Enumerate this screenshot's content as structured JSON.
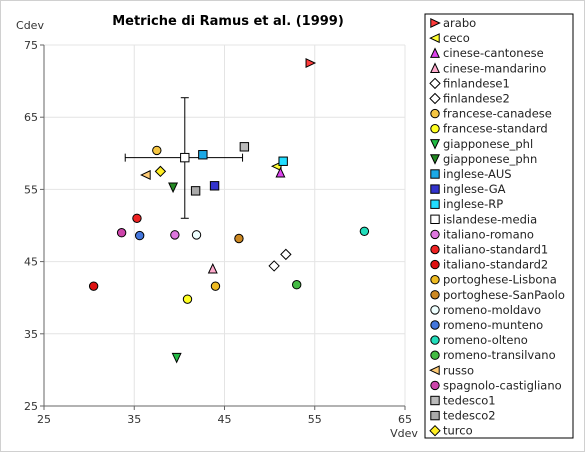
{
  "chart_data": {
    "type": "scatter",
    "title": "Metriche di Ramus et al. (1999)",
    "xlabel": "Vdev",
    "ylabel": "Cdev",
    "xlim": [
      25,
      65
    ],
    "ylim": [
      25,
      75
    ],
    "xticks": [
      "25",
      "35",
      "45",
      "55",
      "65"
    ],
    "yticks": [
      "25",
      "35",
      "45",
      "55",
      "65",
      "75"
    ],
    "grid": true,
    "legend_position": "right",
    "series": [
      {
        "name": "arabo",
        "marker": "tri-right",
        "color": "#ff3b3b",
        "x": 54.5,
        "y": 72.5
      },
      {
        "name": "ceco",
        "marker": "tri-left",
        "color": "#ffff33",
        "x": 50.8,
        "y": 58.2
      },
      {
        "name": "cinese-cantonese",
        "marker": "tri-up",
        "color": "#dd44ee",
        "x": 51.2,
        "y": 57.3
      },
      {
        "name": "cinese-mandarino",
        "marker": "tri-up",
        "color": "#ffaacc",
        "x": 43.7,
        "y": 44.0
      },
      {
        "name": "finlandese1",
        "marker": "diamond",
        "color": "#ffffff",
        "x": 51.8,
        "y": 46.0
      },
      {
        "name": "finlandese2",
        "marker": "diamond",
        "color": "#ffffff",
        "x": 50.5,
        "y": 44.4
      },
      {
        "name": "francese-canadese",
        "marker": "circle",
        "color": "#f5c542",
        "x": 37.5,
        "y": 60.4
      },
      {
        "name": "francese-standard",
        "marker": "circle",
        "color": "#ffff22",
        "x": 40.9,
        "y": 39.8
      },
      {
        "name": "giapponese_phl",
        "marker": "tri-down",
        "color": "#22bb44",
        "x": 39.7,
        "y": 31.7
      },
      {
        "name": "giapponese_phn",
        "marker": "tri-down",
        "color": "#228822",
        "x": 39.3,
        "y": 55.3
      },
      {
        "name": "inglese-AUS",
        "marker": "square",
        "color": "#1ba9e6",
        "x": 42.6,
        "y": 59.8
      },
      {
        "name": "inglese-GA",
        "marker": "square",
        "color": "#3333cc",
        "x": 43.9,
        "y": 55.5
      },
      {
        "name": "inglese-RP",
        "marker": "square",
        "color": "#22ddff",
        "x": 51.5,
        "y": 58.9
      },
      {
        "name": "islandese-media",
        "marker": "square",
        "color": "#ffffff",
        "x": 40.6,
        "y": 59.4,
        "xerr": [
          34.0,
          47.0
        ],
        "yerr": [
          51.0,
          67.7
        ]
      },
      {
        "name": "italiano-romano",
        "marker": "circle",
        "color": "#dd77dd",
        "x": 39.5,
        "y": 48.7
      },
      {
        "name": "italiano-standard1",
        "marker": "circle",
        "color": "#ee2222",
        "x": 35.3,
        "y": 51.0
      },
      {
        "name": "italiano-standard2",
        "marker": "circle",
        "color": "#dd1111",
        "x": 30.5,
        "y": 41.6
      },
      {
        "name": "portoghese-Lisbona",
        "marker": "circle",
        "color": "#eebb22",
        "x": 44.0,
        "y": 41.6
      },
      {
        "name": "portoghese-SanPaolo",
        "marker": "circle",
        "color": "#cc8822",
        "x": 46.6,
        "y": 48.2
      },
      {
        "name": "romeno-moldavo",
        "marker": "circle",
        "color": "#eeffff",
        "x": 41.9,
        "y": 48.7
      },
      {
        "name": "romeno-munteno",
        "marker": "circle",
        "color": "#4477dd",
        "x": 35.6,
        "y": 48.6
      },
      {
        "name": "romeno-olteno",
        "marker": "circle",
        "color": "#22ddbb",
        "x": 60.5,
        "y": 49.2
      },
      {
        "name": "romeno-transilvano",
        "marker": "circle",
        "color": "#44bb44",
        "x": 53.0,
        "y": 41.8
      },
      {
        "name": "russo",
        "marker": "tri-left",
        "color": "#ffcc77",
        "x": 36.3,
        "y": 57.0
      },
      {
        "name": "spagnolo-castigliano",
        "marker": "circle",
        "color": "#cc44aa",
        "x": 33.6,
        "y": 49.0
      },
      {
        "name": "tedesco1",
        "marker": "square",
        "color": "#bbbbbb",
        "x": 47.2,
        "y": 60.9
      },
      {
        "name": "tedesco2",
        "marker": "square",
        "color": "#aaaaaa",
        "x": 41.8,
        "y": 54.8
      },
      {
        "name": "turco",
        "marker": "diamond",
        "color": "#ffee22",
        "x": 37.9,
        "y": 57.5
      }
    ]
  }
}
